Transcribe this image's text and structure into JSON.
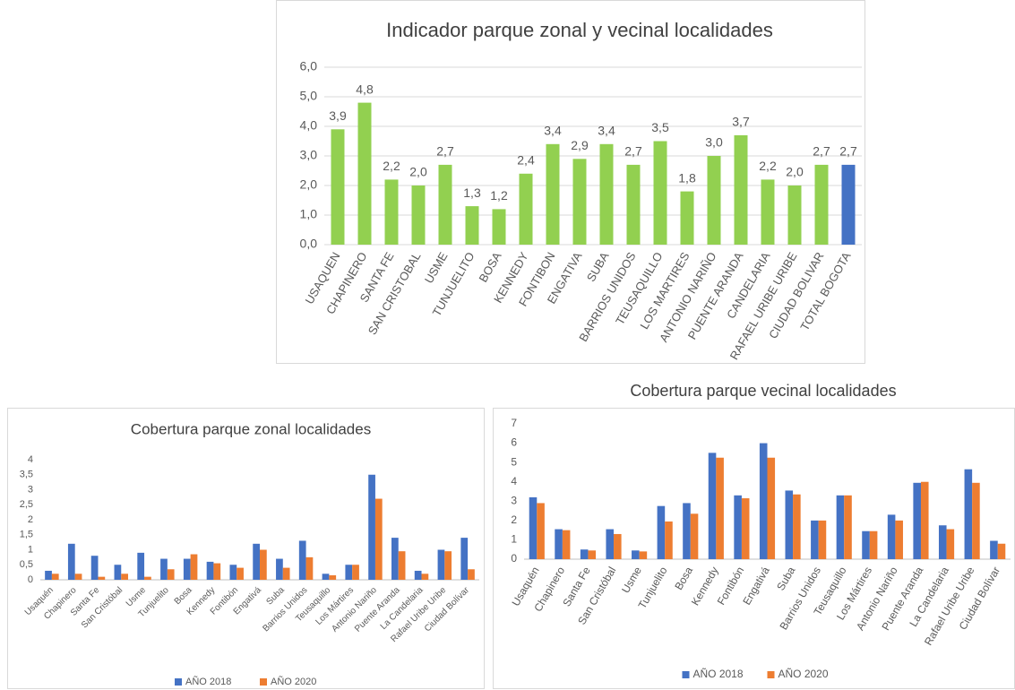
{
  "chart_data": [
    {
      "type": "bar",
      "title": "Indicador parque zonal y vecinal localidades",
      "categories": [
        "USAQUEN",
        "CHAPINERO",
        "SANTA FE",
        "SAN CRISTOBAL",
        "USME",
        "TUNJUELITO",
        "BOSA",
        "KENNEDY",
        "FONTIBON",
        "ENGATIVA",
        "SUBA",
        "BARRIOS UNIDOS",
        "TEUSAQUILLO",
        "LOS MARTIRES",
        "ANTONIO NARIÑO",
        "PUENTE ARANDA",
        "CANDELARIA",
        "RAFAEL URIBE URIBE",
        "CIUDAD BOLIVAR",
        "TOTAL BOGOTA"
      ],
      "values": [
        3.9,
        4.8,
        2.2,
        2.0,
        2.7,
        1.3,
        1.2,
        2.4,
        3.4,
        2.9,
        3.4,
        2.7,
        3.5,
        1.8,
        3.0,
        3.7,
        2.2,
        2.0,
        2.7,
        2.7
      ],
      "value_labels": [
        "3,9",
        "4,8",
        "2,2",
        "2,0",
        "2,7",
        "1,3",
        "1,2",
        "2,4",
        "3,4",
        "2,9",
        "3,4",
        "2,7",
        "3,5",
        "1,8",
        "3,0",
        "3,7",
        "2,2",
        "2,0",
        "2,7",
        "2,7"
      ],
      "colors": [
        "#92d050",
        "#92d050",
        "#92d050",
        "#92d050",
        "#92d050",
        "#92d050",
        "#92d050",
        "#92d050",
        "#92d050",
        "#92d050",
        "#92d050",
        "#92d050",
        "#92d050",
        "#92d050",
        "#92d050",
        "#92d050",
        "#92d050",
        "#92d050",
        "#92d050",
        "#4472c4"
      ],
      "ylim": [
        0,
        6
      ],
      "yticks": [
        {
          "value": 0,
          "label": "0,0"
        },
        {
          "value": 1,
          "label": "1,0"
        },
        {
          "value": 2,
          "label": "2,0"
        },
        {
          "value": 3,
          "label": "3,0"
        },
        {
          "value": 4,
          "label": "4,0"
        },
        {
          "value": 5,
          "label": "5,0"
        },
        {
          "value": 6,
          "label": "6,0"
        }
      ],
      "grid": true
    },
    {
      "type": "bar",
      "title": "Cobertura parque zonal localidades",
      "categories": [
        "Usaquén",
        "Chapinero",
        "Santa Fe",
        "San Cristóbal",
        "Usme",
        "Tunjuelito",
        "Bosa",
        "Kennedy",
        "Fontibón",
        "Engativá",
        "Suba",
        "Barrios Unidos",
        "Teusaquillo",
        "Los Mártires",
        "Antonio Nariño",
        "Puente Aranda",
        "La Candelaria",
        "Rafael Uribe Uribe",
        "Ciudad Bolívar"
      ],
      "series": [
        {
          "name": "AÑO 2018",
          "color": "#4472c4",
          "values": [
            0.3,
            1.2,
            0.8,
            0.5,
            0.9,
            0.7,
            0.7,
            0.6,
            0.5,
            1.2,
            0.7,
            1.3,
            0.2,
            0.5,
            3.5,
            1.4,
            0.3,
            1.0,
            1.4
          ]
        },
        {
          "name": "AÑO 2020",
          "color": "#ed7d31",
          "values": [
            0.2,
            0.2,
            0.1,
            0.2,
            0.1,
            0.35,
            0.85,
            0.55,
            0.4,
            1.0,
            0.4,
            0.75,
            0.15,
            0.5,
            2.7,
            0.95,
            0.2,
            0.95,
            0.35
          ]
        }
      ],
      "ylim": [
        0,
        4
      ],
      "yticks": [
        0,
        {
          "value": 0.5,
          "label": "0,5"
        },
        1,
        {
          "value": 1.5,
          "label": "1,5"
        },
        2,
        {
          "value": 2.5,
          "label": "2,5"
        },
        3,
        {
          "value": 3.5,
          "label": "3,5"
        },
        4
      ],
      "grid": false,
      "legend": "bottom"
    },
    {
      "type": "bar",
      "title": "Cobertura parque vecinal localidades",
      "categories": [
        "Usaquén",
        "Chapinero",
        "Santa Fe",
        "San Cristóbal",
        "Usme",
        "Tunjuelito",
        "Bosa",
        "Kennedy",
        "Fontibón",
        "Engativá",
        "Suba",
        "Barrios Unidos",
        "Teusaquillo",
        "Los Mártires",
        "Antonio Nariño",
        "Puente Aranda",
        "La Candelaria",
        "Rafael Uribe Uribe",
        "Ciudad Bolívar"
      ],
      "series": [
        {
          "name": "AÑO 2018",
          "color": "#4472c4",
          "values": [
            3.2,
            1.55,
            0.5,
            1.55,
            0.45,
            2.75,
            2.9,
            5.5,
            3.3,
            6.0,
            3.55,
            2.0,
            3.3,
            1.45,
            2.3,
            3.95,
            1.75,
            4.65,
            0.95
          ]
        },
        {
          "name": "AÑO 2020",
          "color": "#ed7d31",
          "values": [
            2.9,
            1.5,
            0.45,
            1.3,
            0.4,
            1.95,
            2.35,
            5.25,
            3.15,
            5.25,
            3.35,
            2.0,
            3.3,
            1.45,
            2.0,
            4.0,
            1.55,
            3.95,
            0.8
          ]
        }
      ],
      "ylim": [
        0,
        7
      ],
      "yticks": [
        0,
        1,
        2,
        3,
        4,
        5,
        6,
        7
      ],
      "grid": false,
      "legend": "bottom"
    }
  ]
}
